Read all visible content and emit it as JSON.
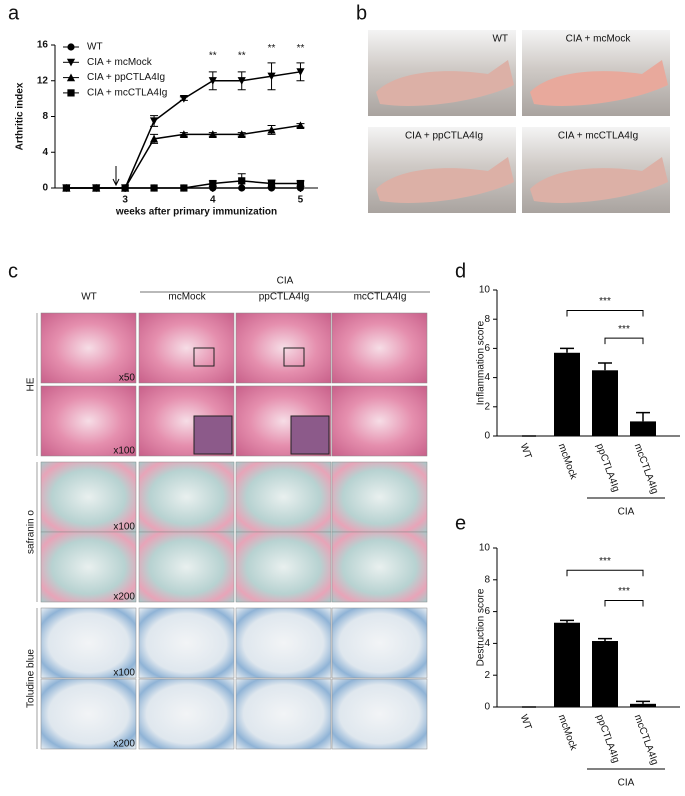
{
  "chart_data": [
    {
      "type": "line",
      "panel": "a",
      "ylabel": "Arthritic index",
      "xlabel": "weeks after primary immunization",
      "x": [
        2.33,
        2.67,
        3,
        3.33,
        3.67,
        4,
        4.33,
        4.67,
        5
      ],
      "xlim": [
        2.2,
        5.2
      ],
      "xticks": [
        3,
        4,
        5
      ],
      "ylim": [
        0,
        16
      ],
      "yticks": [
        0,
        4,
        8,
        12,
        16
      ],
      "color": "#000000",
      "legend": "upper left",
      "series": [
        {
          "name": "WT",
          "marker": "circle",
          "values": [
            0,
            0,
            0,
            0,
            0,
            0,
            0,
            0,
            0
          ],
          "errors": [
            0,
            0,
            0,
            0,
            0,
            0,
            0,
            0,
            0
          ]
        },
        {
          "name": "CIA + mcMock",
          "marker": "triangle-down",
          "values": [
            0,
            0,
            0,
            7.5,
            10,
            12,
            12,
            12.5,
            13
          ],
          "errors": [
            0,
            0,
            0,
            0.6,
            0.2,
            1,
            1,
            1.5,
            1
          ]
        },
        {
          "name": "CIA + ppCTLA4Ig",
          "marker": "triangle-up",
          "values": [
            0,
            0,
            0,
            5.5,
            6,
            6,
            6,
            6.5,
            7
          ],
          "errors": [
            0,
            0,
            0,
            0.5,
            0.2,
            0.2,
            0.2,
            0.5,
            0.2
          ]
        },
        {
          "name": "CIA + mcCTLA4Ig",
          "marker": "square",
          "values": [
            0,
            0,
            0,
            0,
            0,
            0.5,
            0.8,
            0.5,
            0.5
          ],
          "errors": [
            0,
            0,
            0,
            0,
            0,
            0.3,
            0.8,
            0.4,
            0.3
          ]
        }
      ],
      "annotations": [
        {
          "text": "**",
          "x": 4,
          "y": 14.8
        },
        {
          "text": "**",
          "x": 4.33,
          "y": 14.8
        },
        {
          "text": "**",
          "x": 4.67,
          "y": 15.6
        },
        {
          "text": "**",
          "x": 5,
          "y": 15.6
        }
      ]
    },
    {
      "type": "bar",
      "panel": "d",
      "ylabel": "Inflammation score",
      "categories": [
        "WT",
        "mcMock",
        "ppCTLA4Ig",
        "mcCTLA4Ig"
      ],
      "values": [
        0,
        5.7,
        4.5,
        1.0
      ],
      "errors": [
        0,
        0.3,
        0.5,
        0.6
      ],
      "ylim": [
        0,
        10
      ],
      "yticks": [
        0,
        2,
        4,
        6,
        8,
        10
      ],
      "color": "#000000",
      "brackets": [
        {
          "text": "***",
          "from": 1,
          "to": 3,
          "y": 8.6
        },
        {
          "text": "***",
          "from": 2,
          "to": 3,
          "y": 6.7
        }
      ],
      "group": {
        "label": "CIA",
        "from": 2,
        "to": 3
      }
    },
    {
      "type": "bar",
      "panel": "e",
      "ylabel": "Destruction score",
      "categories": [
        "WT",
        "mcMock",
        "ppCTLA4Ig",
        "mcCTLA4Ig"
      ],
      "values": [
        0,
        5.3,
        4.15,
        0.2
      ],
      "errors": [
        0,
        0.15,
        0.15,
        0.15
      ],
      "ylim": [
        0,
        10
      ],
      "yticks": [
        0,
        2,
        4,
        6,
        8,
        10
      ],
      "color": "#000000",
      "brackets": [
        {
          "text": "***",
          "from": 1,
          "to": 3,
          "y": 8.6
        },
        {
          "text": "***",
          "from": 2,
          "to": 3,
          "y": 6.7
        }
      ],
      "group": {
        "label": "CIA",
        "from": 2,
        "to": 3
      }
    }
  ],
  "photos": {
    "panel": "b",
    "labels": [
      "WT",
      "CIA + mcMock",
      "CIA + ppCTLA4Ig",
      "CIA + mcCTLA4Ig"
    ]
  },
  "histology": {
    "panel": "c",
    "group": "CIA",
    "columns": [
      "WT",
      "mcMock",
      "ppCTLA4Ig",
      "mcCTLA4Ig"
    ],
    "rows": [
      {
        "label": "HE",
        "magnifications": [
          "x50",
          "x100"
        ]
      },
      {
        "label": "safranin o",
        "magnifications": [
          "x100",
          "x200"
        ]
      },
      {
        "label": "Toludine blue",
        "magnifications": [
          "x100",
          "x200"
        ]
      }
    ]
  }
}
